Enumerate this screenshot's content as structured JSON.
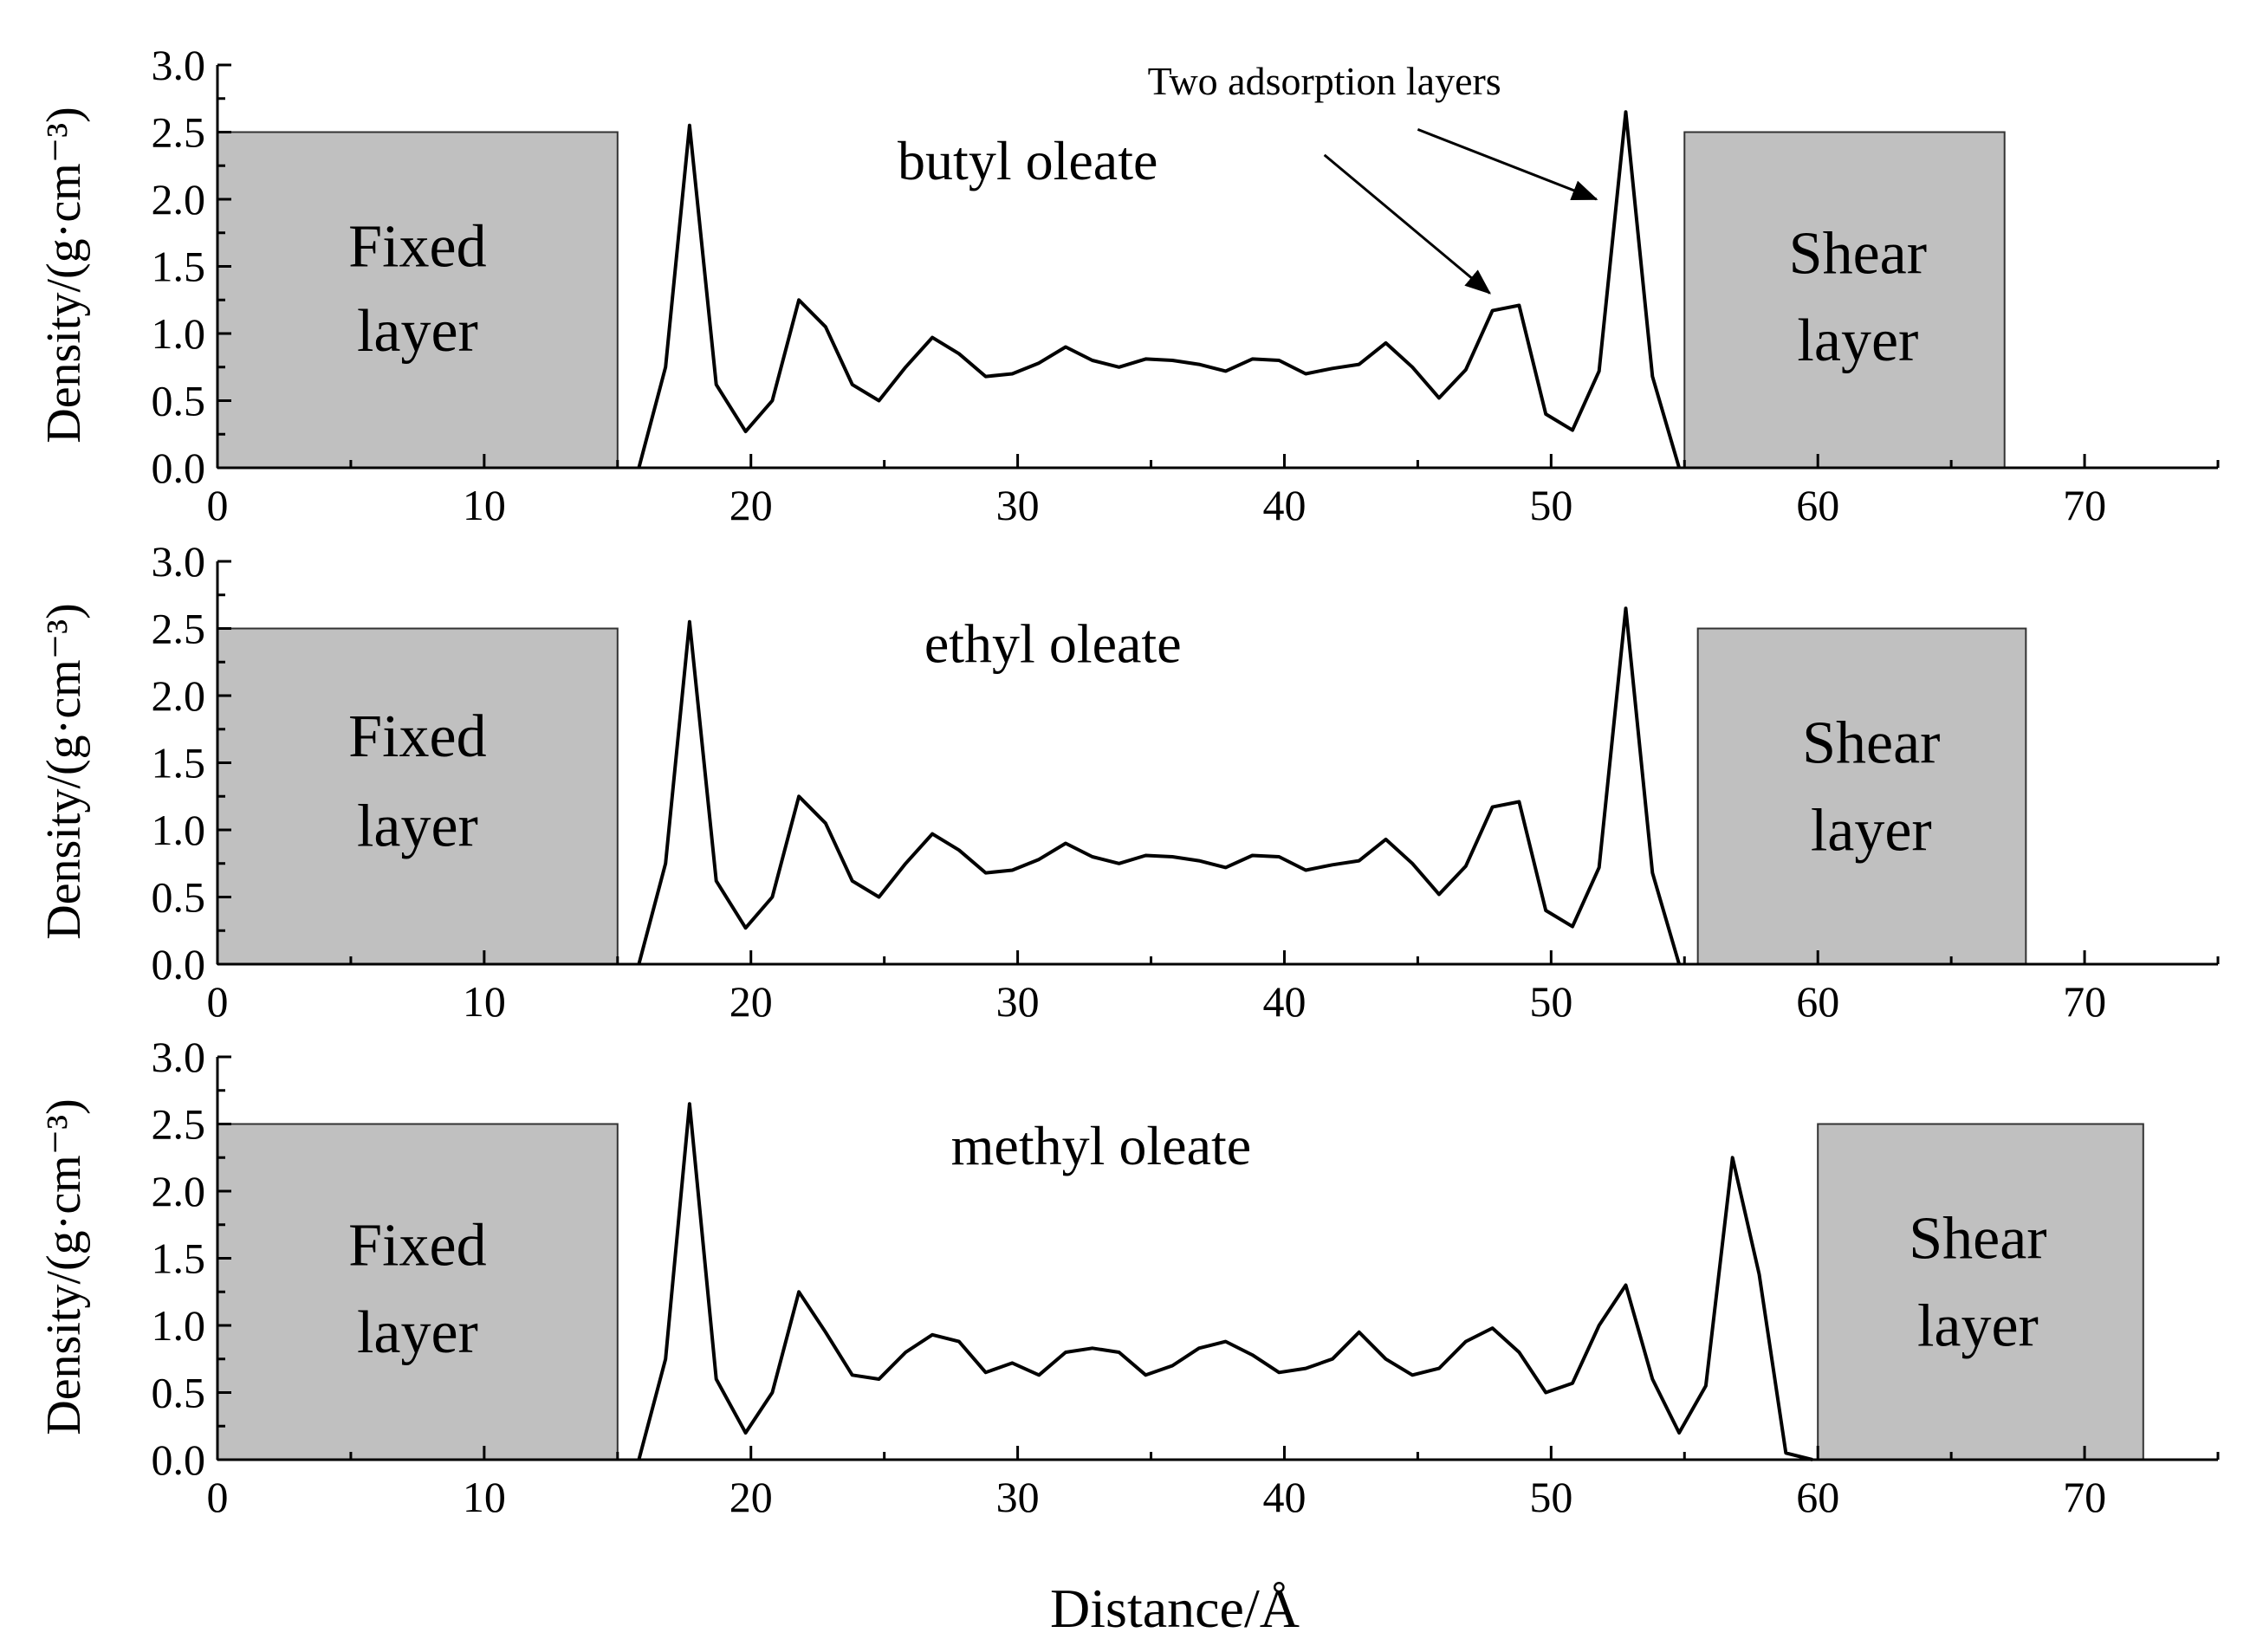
{
  "chart_data": [
    {
      "type": "line",
      "title": "",
      "xlabel": "",
      "ylabel": "Density/(g·cm⁻³)",
      "xlim": [
        0,
        75
      ],
      "ylim": [
        0,
        3.0
      ],
      "xticks": [
        0,
        10,
        20,
        30,
        40,
        50,
        60,
        70
      ],
      "yticks": [
        "0.0",
        "0.5",
        "1.0",
        "1.5",
        "2.0",
        "2.5",
        "3.0"
      ],
      "grid": false,
      "series": [
        {
          "name": "butyl oleate",
          "x": [
            15.8,
            16.8,
            17.7,
            18.7,
            19.8,
            20.8,
            21.8,
            22.8,
            23.8,
            24.8,
            25.8,
            26.8,
            27.8,
            28.8,
            29.8,
            30.8,
            31.8,
            32.8,
            33.8,
            34.8,
            35.8,
            36.8,
            37.8,
            38.8,
            39.8,
            40.8,
            41.8,
            42.8,
            43.8,
            44.8,
            45.8,
            46.8,
            47.8,
            48.8,
            49.8,
            50.8,
            51.8,
            52.8,
            53.8,
            54.8
          ],
          "values": [
            0.0,
            0.75,
            2.55,
            0.62,
            0.27,
            0.5,
            1.25,
            1.05,
            0.62,
            0.5,
            0.75,
            0.97,
            0.85,
            0.68,
            0.7,
            0.78,
            0.9,
            0.8,
            0.75,
            0.81,
            0.8,
            0.77,
            0.72,
            0.81,
            0.8,
            0.7,
            0.74,
            0.77,
            0.93,
            0.75,
            0.52,
            0.73,
            1.17,
            1.21,
            0.4,
            0.28,
            0.72,
            2.65,
            0.68,
            0.0
          ]
        }
      ],
      "annotations": [
        {
          "text": "butyl oleate",
          "x": 25.5,
          "y": 2.15
        },
        {
          "text": "Fixed",
          "x": 7.5,
          "y": 1.5
        },
        {
          "text": "layer",
          "x": 7.5,
          "y": 0.87
        },
        {
          "text": "Shear",
          "x": 61.5,
          "y": 1.45
        },
        {
          "text": "layer",
          "x": 61.5,
          "y": 0.8
        },
        {
          "text": "Two adsorption layers",
          "x": 41.5,
          "y": 2.78
        }
      ],
      "regions": [
        {
          "label": "Fixed layer",
          "x": [
            0,
            15
          ],
          "y": [
            0,
            2.5
          ]
        },
        {
          "label": "Shear layer",
          "x": [
            55,
            67
          ],
          "y": [
            0,
            2.5
          ]
        }
      ]
    },
    {
      "type": "line",
      "title": "",
      "xlabel": "",
      "ylabel": "Density/(g·cm⁻³)",
      "xlim": [
        0,
        75
      ],
      "ylim": [
        0,
        3.0
      ],
      "xticks": [
        0,
        10,
        20,
        30,
        40,
        50,
        60,
        70
      ],
      "yticks": [
        "0.0",
        "0.5",
        "1.0",
        "1.5",
        "2.0",
        "2.5",
        "3.0"
      ],
      "grid": false,
      "series": [
        {
          "name": "ethyl oleate",
          "x": [
            15.8,
            16.8,
            17.7,
            18.7,
            19.8,
            20.8,
            21.8,
            22.8,
            23.8,
            24.8,
            25.8,
            26.8,
            27.8,
            28.8,
            29.8,
            30.8,
            31.8,
            32.8,
            33.8,
            34.8,
            35.8,
            36.8,
            37.8,
            38.8,
            39.8,
            40.8,
            41.8,
            42.8,
            43.8,
            44.8,
            45.8,
            46.8,
            47.8,
            48.8,
            49.8,
            50.8,
            51.8,
            52.8,
            53.8,
            54.8
          ],
          "values": [
            0.0,
            0.75,
            2.55,
            0.62,
            0.27,
            0.5,
            1.25,
            1.05,
            0.62,
            0.5,
            0.75,
            0.97,
            0.85,
            0.68,
            0.7,
            0.78,
            0.9,
            0.8,
            0.75,
            0.81,
            0.8,
            0.77,
            0.72,
            0.81,
            0.8,
            0.7,
            0.74,
            0.77,
            0.93,
            0.75,
            0.52,
            0.73,
            1.17,
            1.21,
            0.4,
            0.28,
            0.72,
            2.65,
            0.68,
            0.0
          ]
        }
      ],
      "annotations": [
        {
          "text": "ethyl oleate",
          "x": 26.5,
          "y": 2.25
        },
        {
          "text": "Fixed",
          "x": 7.5,
          "y": 1.55
        },
        {
          "text": "layer",
          "x": 7.5,
          "y": 0.88
        },
        {
          "text": "Shear",
          "x": 62,
          "y": 1.5
        },
        {
          "text": "layer",
          "x": 62,
          "y": 0.85
        }
      ],
      "regions": [
        {
          "label": "Fixed layer",
          "x": [
            0,
            15
          ],
          "y": [
            0,
            2.5
          ]
        },
        {
          "label": "Shear layer",
          "x": [
            55.5,
            67.8
          ],
          "y": [
            0,
            2.5
          ]
        }
      ]
    },
    {
      "type": "line",
      "title": "",
      "xlabel": "Distance/Å",
      "ylabel": "Density/(g·cm⁻³)",
      "xlim": [
        0,
        75
      ],
      "ylim": [
        0,
        3.0
      ],
      "xticks": [
        0,
        10,
        20,
        30,
        40,
        50,
        60,
        70
      ],
      "yticks": [
        "0.0",
        "0.5",
        "1.0",
        "1.5",
        "2.0",
        "2.5",
        "3.0"
      ],
      "grid": false,
      "series": [
        {
          "name": "methyl oleate",
          "x": [
            15.8,
            16.8,
            17.7,
            18.7,
            19.8,
            20.8,
            21.8,
            22.8,
            23.8,
            24.8,
            25.8,
            26.8,
            27.8,
            28.8,
            29.8,
            30.8,
            31.8,
            32.8,
            33.8,
            34.8,
            35.8,
            36.8,
            37.8,
            38.8,
            39.8,
            40.8,
            41.8,
            42.8,
            43.8,
            44.8,
            45.8,
            46.8,
            47.8,
            48.8,
            49.8,
            50.8,
            51.8,
            52.8,
            53.8,
            54.8,
            55.8,
            56.8,
            57.8,
            58.8,
            59.8
          ],
          "values": [
            0.0,
            0.75,
            2.65,
            0.6,
            0.2,
            0.5,
            1.25,
            0.95,
            0.63,
            0.6,
            0.8,
            0.93,
            0.88,
            0.65,
            0.72,
            0.63,
            0.8,
            0.83,
            0.8,
            0.63,
            0.7,
            0.83,
            0.88,
            0.78,
            0.65,
            0.68,
            0.75,
            0.95,
            0.75,
            0.63,
            0.68,
            0.88,
            0.98,
            0.8,
            0.5,
            0.57,
            1.0,
            1.3,
            0.6,
            0.2,
            0.55,
            2.25,
            1.38,
            0.05,
            0.0
          ]
        }
      ],
      "annotations": [
        {
          "text": "methyl oleate",
          "x": 27.5,
          "y": 2.2
        },
        {
          "text": "Fixed",
          "x": 7.5,
          "y": 1.45
        },
        {
          "text": "layer",
          "x": 7.5,
          "y": 0.8
        },
        {
          "text": "Shear",
          "x": 66,
          "y": 1.5
        },
        {
          "text": "layer",
          "x": 66,
          "y": 0.85
        }
      ],
      "regions": [
        {
          "label": "Fixed layer",
          "x": [
            0,
            15
          ],
          "y": [
            0,
            2.5
          ]
        },
        {
          "label": "Shear layer",
          "x": [
            60,
            72.2
          ],
          "y": [
            0,
            2.5
          ]
        }
      ]
    }
  ],
  "region_fill": "#c0c0c0",
  "line_color": "#000000",
  "text_color": "#000000"
}
